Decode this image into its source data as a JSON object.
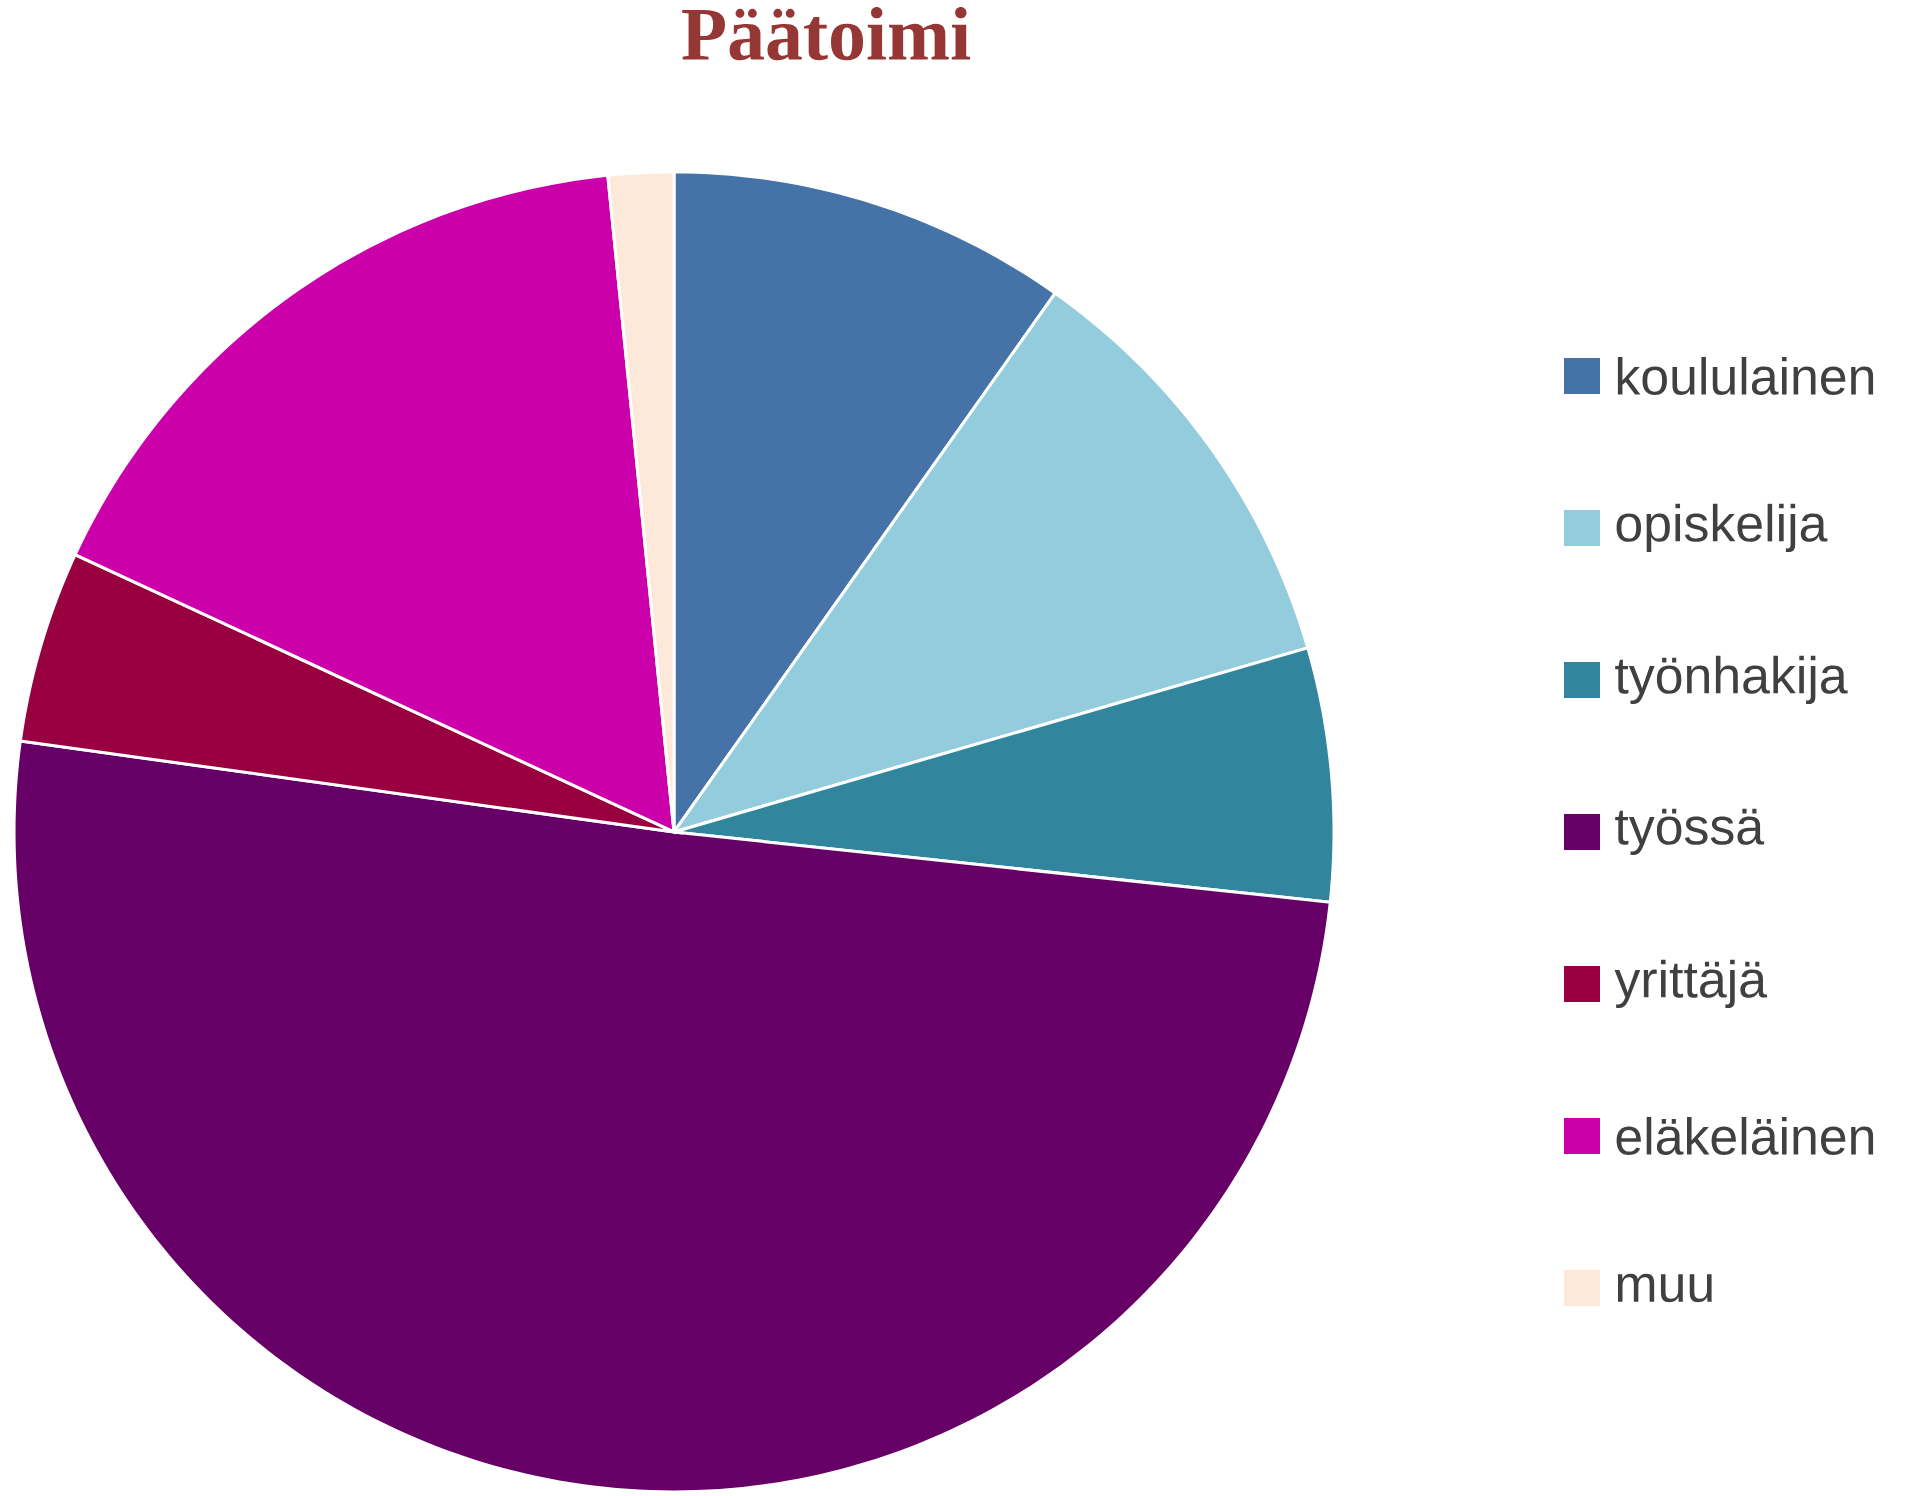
{
  "chart_data": {
    "type": "pie",
    "title": "Päätoimi",
    "categories": [
      "koululainen",
      "opiskelija",
      "työnhakija",
      "työssä",
      "yrittäjä",
      "eläkeläinen",
      "muu"
    ],
    "values": [
      9.8,
      10.7,
      6.2,
      50.5,
      4.7,
      16.5,
      1.6
    ],
    "colors": [
      "#4573a7",
      "#93cddd",
      "#31859c",
      "#660066",
      "#990040",
      "#cc00aa",
      "#fde9d9"
    ],
    "legend": "right"
  }
}
